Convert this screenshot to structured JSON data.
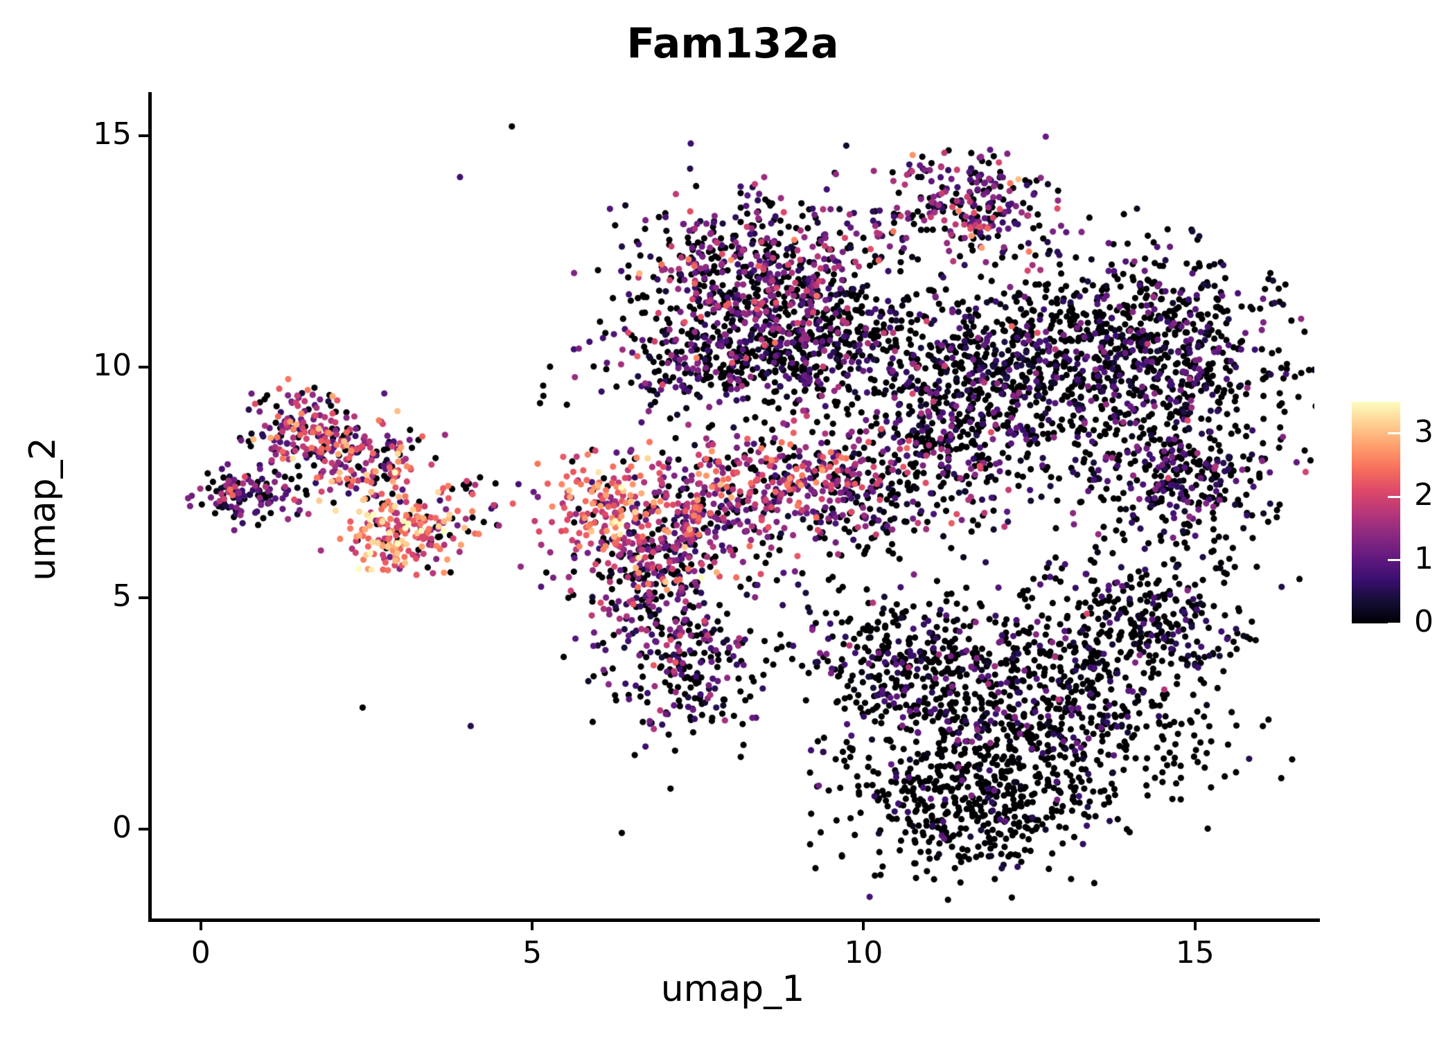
{
  "title": "Fam132a",
  "axes": {
    "xlabel": "umap_1",
    "ylabel": "umap_2",
    "x_ticks": [
      "0",
      "5",
      "10",
      "15"
    ],
    "x_tick_values": [
      0,
      5,
      10,
      15
    ],
    "y_ticks": [
      "0",
      "5",
      "10",
      "15"
    ],
    "y_tick_values": [
      0,
      5,
      10,
      15
    ],
    "x_range": [
      -0.75,
      16.8
    ],
    "y_range": [
      -1.93,
      15.9
    ]
  },
  "colorbar": {
    "tick_labels": [
      "0",
      "1",
      "2",
      "3"
    ],
    "tick_values": [
      0,
      1,
      2,
      3
    ],
    "vmin": 0,
    "vmax": 3.5,
    "colormap": "magma",
    "stops": [
      "#000004",
      "#140e36",
      "#3b0f70",
      "#641a80",
      "#8c2981",
      "#b73779",
      "#de4968",
      "#f7705c",
      "#fe9f6d",
      "#fecf92",
      "#fcfdbf"
    ]
  },
  "chart_data": {
    "type": "scatter",
    "title": "Fam132a",
    "xlabel": "umap_1",
    "ylabel": "umap_2",
    "x_range": [
      -0.75,
      16.8
    ],
    "y_range": [
      -1.93,
      15.9
    ],
    "color_by": "Fam132a expression level, 0 to ~3.5, magma colormap (0 = black, 1 = purple, 2 = magenta/pink, 3+ = orange/yellow)",
    "n_points_estimate": 7065,
    "seed": 42,
    "point_radius_px": 4.6,
    "representation": "gaussian_cluster_summary",
    "clusters": [
      {
        "name": "left-tail",
        "cx": 0.7,
        "cy": 7.3,
        "sx": 0.38,
        "sy": 0.28,
        "n": 130,
        "zero_frac": 0.3,
        "expr_mean": 0.9,
        "expr_sd": 0.6
      },
      {
        "name": "left-upper",
        "cx": 1.55,
        "cy": 8.6,
        "sx": 0.42,
        "sy": 0.42,
        "n": 150,
        "zero_frac": 0.2,
        "expr_mean": 1.4,
        "expr_sd": 0.7
      },
      {
        "name": "left-mid",
        "cx": 2.5,
        "cy": 7.9,
        "sx": 0.55,
        "sy": 0.45,
        "n": 170,
        "zero_frac": 0.2,
        "expr_mean": 1.8,
        "expr_sd": 0.8
      },
      {
        "name": "left-lower-hot",
        "cx": 3.0,
        "cy": 6.4,
        "sx": 0.5,
        "sy": 0.42,
        "n": 190,
        "zero_frac": 0.12,
        "expr_mean": 2.5,
        "expr_sd": 0.6
      },
      {
        "name": "left-right-wisp",
        "cx": 4.1,
        "cy": 7.0,
        "sx": 0.45,
        "sy": 0.4,
        "n": 25,
        "zero_frac": 0.3,
        "expr_mean": 1.5,
        "expr_sd": 0.7
      },
      {
        "name": "mid-top-hot",
        "cx": 6.0,
        "cy": 7.0,
        "sx": 0.45,
        "sy": 0.55,
        "n": 150,
        "zero_frac": 0.12,
        "expr_mean": 2.2,
        "expr_sd": 0.6
      },
      {
        "name": "mid-upper",
        "cx": 6.7,
        "cy": 6.1,
        "sx": 0.5,
        "sy": 0.6,
        "n": 170,
        "zero_frac": 0.2,
        "expr_mean": 1.6,
        "expr_sd": 0.7
      },
      {
        "name": "mid-lower",
        "cx": 6.9,
        "cy": 4.8,
        "sx": 0.55,
        "sy": 0.7,
        "n": 180,
        "zero_frac": 0.35,
        "expr_mean": 1.1,
        "expr_sd": 0.6
      },
      {
        "name": "mid-bottom",
        "cx": 7.3,
        "cy": 3.4,
        "sx": 0.6,
        "sy": 0.65,
        "n": 170,
        "zero_frac": 0.5,
        "expr_mean": 0.8,
        "expr_sd": 0.5
      },
      {
        "name": "mid-bridge",
        "cx": 7.7,
        "cy": 6.8,
        "sx": 0.65,
        "sy": 0.6,
        "n": 200,
        "zero_frac": 0.25,
        "expr_mean": 1.4,
        "expr_sd": 0.7
      },
      {
        "name": "top-left-lobe",
        "cx": 8.2,
        "cy": 12.2,
        "sx": 0.85,
        "sy": 0.75,
        "n": 420,
        "zero_frac": 0.4,
        "expr_mean": 1.1,
        "expr_sd": 0.7
      },
      {
        "name": "top-band",
        "cx": 8.1,
        "cy": 10.3,
        "sx": 0.95,
        "sy": 0.65,
        "n": 420,
        "zero_frac": 0.55,
        "expr_mean": 0.8,
        "expr_sd": 0.6
      },
      {
        "name": "top-right-lobe",
        "cx": 9.4,
        "cy": 11.0,
        "sx": 0.8,
        "sy": 0.85,
        "n": 330,
        "zero_frac": 0.55,
        "expr_mean": 0.8,
        "expr_sd": 0.6
      },
      {
        "name": "apex-cluster",
        "cx": 11.5,
        "cy": 13.5,
        "sx": 0.75,
        "sy": 0.55,
        "n": 260,
        "zero_frac": 0.3,
        "expr_mean": 1.2,
        "expr_sd": 0.7
      },
      {
        "name": "right-core",
        "cx": 12.4,
        "cy": 10.0,
        "sx": 1.3,
        "sy": 1.0,
        "n": 850,
        "zero_frac": 0.6,
        "expr_mean": 0.7,
        "expr_sd": 0.5
      },
      {
        "name": "right-east",
        "cx": 14.5,
        "cy": 10.4,
        "sx": 0.95,
        "sy": 0.95,
        "n": 500,
        "zero_frac": 0.65,
        "expr_mean": 0.6,
        "expr_sd": 0.5
      },
      {
        "name": "right-southeast",
        "cx": 14.8,
        "cy": 7.6,
        "sx": 0.8,
        "sy": 0.75,
        "n": 330,
        "zero_frac": 0.6,
        "expr_mean": 0.7,
        "expr_sd": 0.5
      },
      {
        "name": "right-west",
        "cx": 11.1,
        "cy": 8.2,
        "sx": 0.85,
        "sy": 0.7,
        "n": 240,
        "zero_frac": 0.55,
        "expr_mean": 0.8,
        "expr_sd": 0.6
      },
      {
        "name": "band-west",
        "cx": 8.8,
        "cy": 7.6,
        "sx": 0.85,
        "sy": 0.5,
        "n": 240,
        "zero_frac": 0.2,
        "expr_mean": 1.6,
        "expr_sd": 0.6
      },
      {
        "name": "band-east",
        "cx": 9.9,
        "cy": 7.0,
        "sx": 0.75,
        "sy": 0.6,
        "n": 140,
        "zero_frac": 0.45,
        "expr_mean": 1.0,
        "expr_sd": 0.6
      },
      {
        "name": "bottom-core",
        "cx": 12.5,
        "cy": 2.5,
        "sx": 1.4,
        "sy": 1.2,
        "n": 850,
        "zero_frac": 0.75,
        "expr_mean": 0.5,
        "expr_sd": 0.45
      },
      {
        "name": "bottom-west",
        "cx": 10.6,
        "cy": 3.6,
        "sx": 0.85,
        "sy": 0.85,
        "n": 280,
        "zero_frac": 0.7,
        "expr_mean": 0.6,
        "expr_sd": 0.5
      },
      {
        "name": "bottom-south",
        "cx": 11.5,
        "cy": 0.4,
        "sx": 0.95,
        "sy": 0.7,
        "n": 320,
        "zero_frac": 0.85,
        "expr_mean": 0.4,
        "expr_sd": 0.4
      },
      {
        "name": "bottom-east",
        "cx": 14.2,
        "cy": 4.6,
        "sx": 0.85,
        "sy": 0.75,
        "n": 260,
        "zero_frac": 0.7,
        "expr_mean": 0.5,
        "expr_sd": 0.45
      },
      {
        "name": "sparse-background",
        "cx": 9.0,
        "cy": 7.5,
        "sx": 3.2,
        "sy": 2.8,
        "n": 90,
        "zero_frac": 0.5,
        "expr_mean": 0.8,
        "expr_sd": 0.7
      }
    ]
  }
}
